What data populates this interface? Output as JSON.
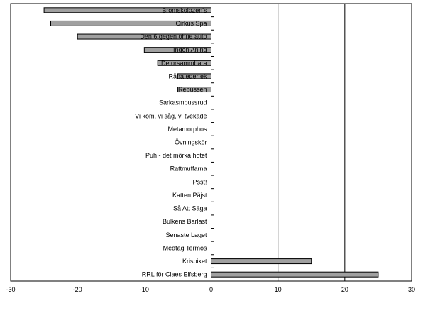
{
  "chart_data": {
    "type": "bar",
    "orientation": "horizontal",
    "categories": [
      "Bromskolozen's",
      "Cirkus Spa",
      "Den 6 gegen ohne auto",
      "Ingen Aning",
      "De orsammbara",
      "Råna eder ek",
      "Rebussen",
      "Sarkasmbussrud",
      "Vi kom, vi såg, vi tvekade",
      "Metamorphos",
      "Övningskör",
      "Puh - det mörka hotet",
      "Rattmuffarna",
      "Psst!",
      "Katten Päjst",
      "Så Att Säga",
      "Bulkens Barlast",
      "Senaste Laget",
      "Medtag Termos",
      "Krispiket",
      "RRL för Claes Elfsberg"
    ],
    "values": [
      -25,
      -24,
      -20,
      -10,
      -8,
      -5,
      -5,
      0,
      0,
      0,
      0,
      0,
      0,
      0,
      0,
      0,
      0,
      0,
      0,
      15,
      25
    ],
    "xlim": [
      -30,
      30
    ],
    "xticks": [
      "-30",
      "-20",
      "-10",
      "0",
      "10",
      "20",
      "30"
    ],
    "xtick_values": [
      -30,
      -20,
      -10,
      0,
      10,
      20,
      30
    ],
    "gridlines": "vertical",
    "bar_color": "#a0a0a0",
    "title": "",
    "xlabel": "",
    "ylabel": ""
  }
}
